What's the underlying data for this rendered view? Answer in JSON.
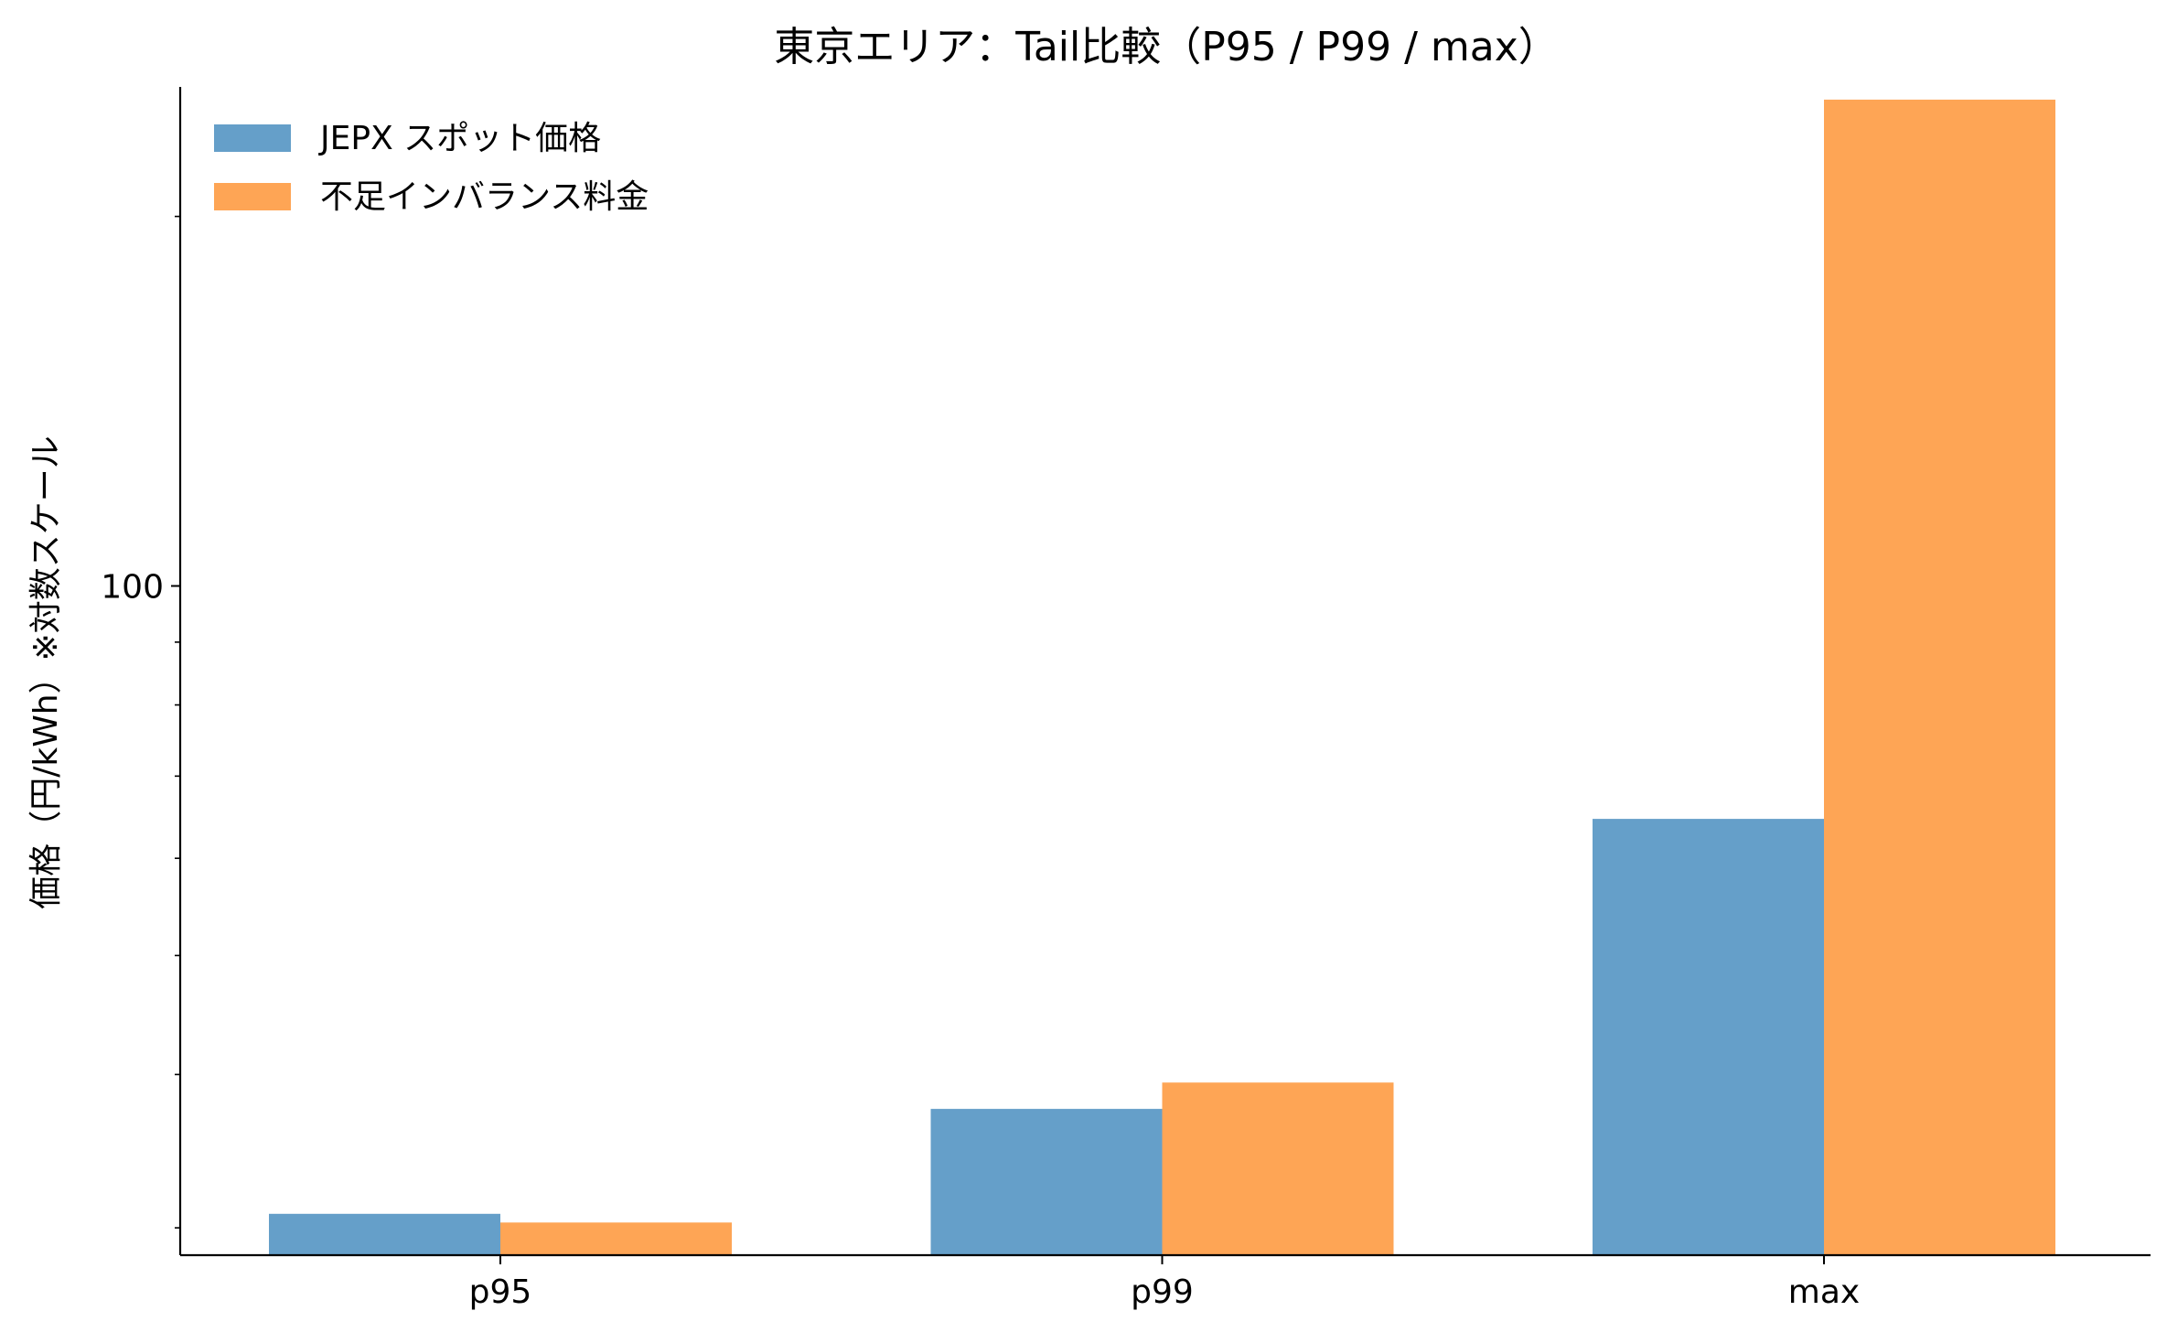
{
  "chart_data": {
    "type": "bar",
    "title": "東京エリア：Tail比較（P95 / P99 / max）",
    "xlabel": "",
    "ylabel": "価格（円/kWh）※対数スケール",
    "yscale": "log",
    "ylim": [
      28.5,
      255
    ],
    "y_major_ticks": [
      100
    ],
    "y_major_tick_labels": [
      "100"
    ],
    "y_minor_ticks": [
      30,
      40,
      50,
      60,
      70,
      80,
      90,
      200
    ],
    "categories": [
      "p95",
      "p99",
      "max"
    ],
    "series": [
      {
        "name": "JEPX スポット価格",
        "color": "#659fc9",
        "values": [
          30.8,
          37.5,
          64.6
        ]
      },
      {
        "name": "不足インバランス料金",
        "color": "#fea555",
        "values": [
          30.3,
          39.4,
          249.0
        ]
      }
    ],
    "legend": "top-left",
    "grid": false
  }
}
